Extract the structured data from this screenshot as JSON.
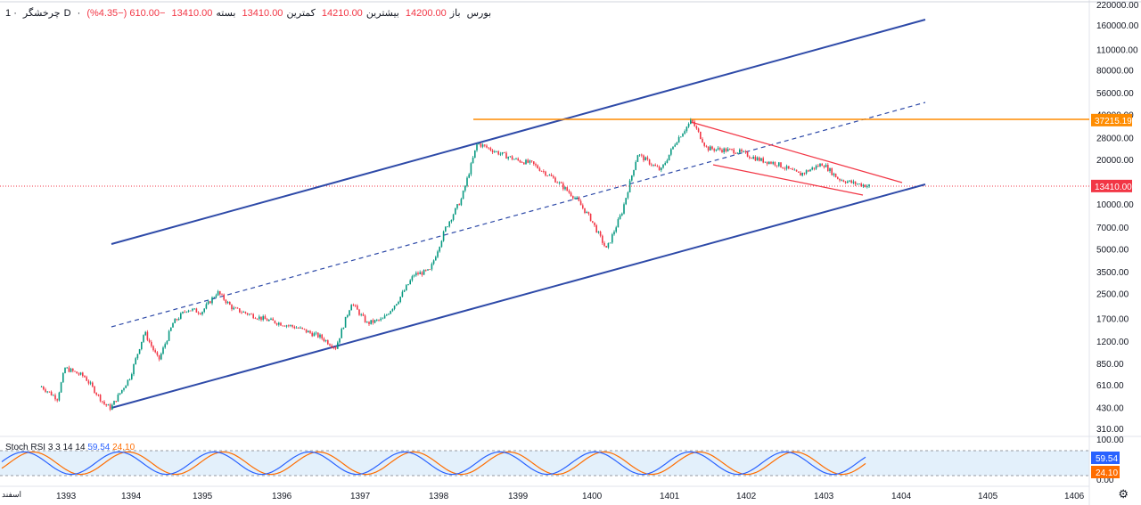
{
  "legend": {
    "symbol": "چرخشگر",
    "interval": "1D",
    "exchange": "بورس",
    "open_label": "باز",
    "open": "14200.00",
    "high_label": "بیشترین",
    "high": "14210.00",
    "low_label": "کمترین",
    "low": "13410.00",
    "close_label": "بسته",
    "close": "13410.00",
    "change": "−610.00 (−4.35%)"
  },
  "stoch": {
    "name": "Stoch RSI",
    "params": "3 3 14 14",
    "k_value": "59.54",
    "d_value": "24.10"
  },
  "colors": {
    "channel": "#2e4aa8",
    "resistance": "#ff8c00",
    "wedge": "#f23645",
    "up": "#089981",
    "down": "#f23645",
    "k_line": "#2962ff",
    "d_line": "#ff6d00",
    "band": "#e3f0fb"
  },
  "corner": "اسفند",
  "chart_data": {
    "type": "candlestick",
    "y_scale": "log",
    "y_ticks": [
      "220000.00",
      "160000.00",
      "110000.00",
      "80000.00",
      "56000.00",
      "40000.00",
      "28000.00",
      "20000.00",
      "10000.00",
      "7000.00",
      "5000.00",
      "3500.00",
      "2500.00",
      "1700.00",
      "1200.00",
      "850.00",
      "610.00",
      "430.00",
      "310.00"
    ],
    "x_ticks": [
      "1393",
      "1394",
      "1395",
      "1396",
      "1397",
      "1398",
      "1399",
      "1400",
      "1401",
      "1402",
      "1403",
      "1404",
      "1405",
      "1406"
    ],
    "price_labels": [
      {
        "value": "37215.19",
        "color": "#ff8c00"
      },
      {
        "value": "13410.00",
        "color": "#f23645"
      }
    ],
    "resistance_level": 37215.19,
    "last_price": 13410.0,
    "series_points": [
      [
        "1392.7",
        600
      ],
      [
        "1392.9",
        500
      ],
      [
        "1393.0",
        800
      ],
      [
        "1393.3",
        700
      ],
      [
        "1393.6",
        460
      ],
      [
        "1393.7",
        430
      ],
      [
        "1394.0",
        700
      ],
      [
        "1394.2",
        1400
      ],
      [
        "1394.4",
        900
      ],
      [
        "1394.6",
        1600
      ],
      [
        "1394.8",
        2000
      ],
      [
        "1395.0",
        1900
      ],
      [
        "1395.2",
        2600
      ],
      [
        "1395.4",
        2000
      ],
      [
        "1395.8",
        1700
      ],
      [
        "1396.2",
        1500
      ],
      [
        "1396.5",
        1300
      ],
      [
        "1396.7",
        1100
      ],
      [
        "1396.9",
        2200
      ],
      [
        "1397.1",
        1600
      ],
      [
        "1397.3",
        1700
      ],
      [
        "1397.5",
        2300
      ],
      [
        "1397.7",
        3400
      ],
      [
        "1397.9",
        3600
      ],
      [
        "1398.1",
        7000
      ],
      [
        "1398.3",
        11000
      ],
      [
        "1398.5",
        26000
      ],
      [
        "1398.8",
        22000
      ],
      [
        "1399.0",
        20000
      ],
      [
        "1399.2",
        19000
      ],
      [
        "1399.5",
        15000
      ],
      [
        "1399.8",
        11000
      ],
      [
        "1400.0",
        8000
      ],
      [
        "1400.2",
        5000
      ],
      [
        "1400.4",
        9000
      ],
      [
        "1400.6",
        22000
      ],
      [
        "1400.9",
        17000
      ],
      [
        "1401.1",
        27000
      ],
      [
        "1401.3",
        37000
      ],
      [
        "1401.5",
        24000
      ],
      [
        "1401.9",
        23000
      ],
      [
        "1402.2",
        20000
      ],
      [
        "1402.4",
        19000
      ],
      [
        "1402.7",
        16000
      ],
      [
        "1403.0",
        19000
      ],
      [
        "1403.2",
        15000
      ],
      [
        "1403.4",
        14000
      ],
      [
        "1403.6",
        13410
      ]
    ]
  }
}
